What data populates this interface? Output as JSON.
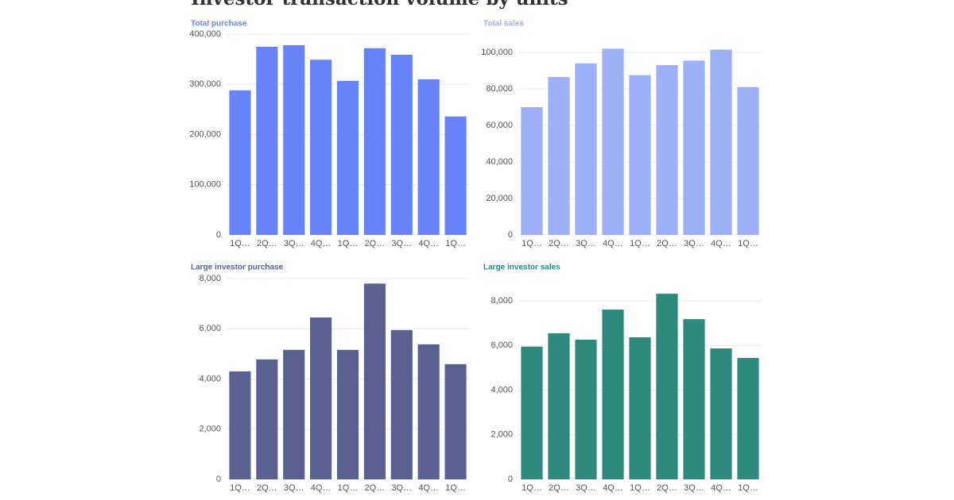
{
  "title": "Investor transaction volume by units",
  "chart_data": [
    {
      "type": "bar",
      "title": "Total purchase",
      "color": "#6783f7",
      "grid": true,
      "categories": [
        "1Q…",
        "2Q…",
        "3Q…",
        "4Q…",
        "1Q…",
        "2Q…",
        "3Q…",
        "4Q…",
        "1Q…"
      ],
      "values": [
        288000,
        375000,
        378000,
        349000,
        307000,
        372000,
        359000,
        310000,
        236000
      ],
      "ylim": [
        0,
        400000
      ],
      "yticks": [
        0,
        {
          "value": 100000,
          "label": "100,000"
        },
        {
          "value": 200000,
          "label": "200,000"
        },
        {
          "value": 300000,
          "label": "300,000"
        },
        {
          "value": 400000,
          "label": "400,000"
        }
      ]
    },
    {
      "type": "bar",
      "title": "Total sales",
      "color": "#9db0f7",
      "grid": true,
      "categories": [
        "1Q…",
        "2Q…",
        "3Q…",
        "4Q…",
        "1Q…",
        "2Q…",
        "3Q…",
        "4Q…",
        "1Q…"
      ],
      "values": [
        70000,
        86500,
        94000,
        102000,
        87500,
        93000,
        95500,
        101500,
        81000
      ],
      "ylim": [
        0,
        110000
      ],
      "yticks": [
        0,
        {
          "value": 20000,
          "label": "20,000"
        },
        {
          "value": 40000,
          "label": "40,000"
        },
        {
          "value": 60000,
          "label": "60,000"
        },
        {
          "value": 80000,
          "label": "80,000"
        },
        {
          "value": 100000,
          "label": "100,000"
        }
      ]
    },
    {
      "type": "bar",
      "title": "Large investor purchase",
      "color": "#5a6191",
      "grid": true,
      "categories": [
        "1Q…",
        "2Q…",
        "3Q…",
        "4Q…",
        "1Q…",
        "2Q…",
        "3Q…",
        "4Q…",
        "1Q…"
      ],
      "values": [
        4300,
        4780,
        5160,
        6450,
        5160,
        7800,
        5950,
        5380,
        4590
      ],
      "ylim": [
        0,
        8000
      ],
      "yticks": [
        0,
        {
          "value": 2000,
          "label": "2,000"
        },
        {
          "value": 4000,
          "label": "4,000"
        },
        {
          "value": 6000,
          "label": "6,000"
        },
        {
          "value": 8000,
          "label": "8,000"
        }
      ]
    },
    {
      "type": "bar",
      "title": "Large investor sales",
      "color": "#2e8a7c",
      "grid": true,
      "categories": [
        "1Q…",
        "2Q…",
        "3Q…",
        "4Q…",
        "1Q…",
        "2Q…",
        "3Q…",
        "4Q…",
        "1Q…"
      ],
      "values": [
        5950,
        6550,
        6260,
        7610,
        6370,
        8320,
        7180,
        5870,
        5440
      ],
      "ylim": [
        0,
        9000
      ],
      "yticks": [
        0,
        {
          "value": 2000,
          "label": "2,000"
        },
        {
          "value": 4000,
          "label": "4,000"
        },
        {
          "value": 6000,
          "label": "6,000"
        },
        {
          "value": 8000,
          "label": "8,000"
        }
      ]
    }
  ]
}
